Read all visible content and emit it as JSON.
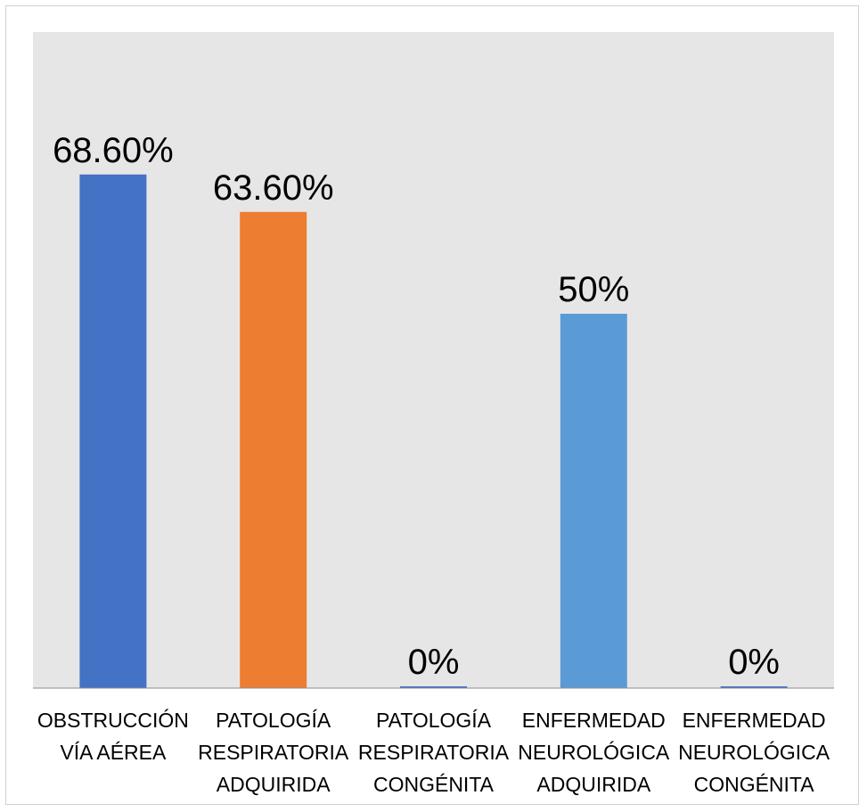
{
  "chart_data": {
    "type": "bar",
    "categories": [
      [
        "OBSTRUCCIÓN",
        "VÍA AÉREA"
      ],
      [
        "PATOLOGÍA",
        "RESPIRATORIA",
        "ADQUIRIDA"
      ],
      [
        "PATOLOGÍA",
        "RESPIRATORIA",
        "CONGÉNITA"
      ],
      [
        "ENFERMEDAD",
        "NEUROLÓGICA",
        "ADQUIRIDA"
      ],
      [
        "ENFERMEDAD",
        "NEUROLÓGICA",
        "CONGÉNITA"
      ]
    ],
    "values": [
      68.6,
      63.6,
      0,
      50,
      0
    ],
    "value_labels": [
      "68.60%",
      "63.60%",
      "0%",
      "50%",
      "0%"
    ],
    "colors": [
      "#4472C4",
      "#ED7D31",
      "#4472C4",
      "#5B9BD5",
      "#4472C4"
    ],
    "ylim": [
      0,
      80
    ],
    "grid": false,
    "legend": "none",
    "plot_background": "#E7E6E6"
  }
}
